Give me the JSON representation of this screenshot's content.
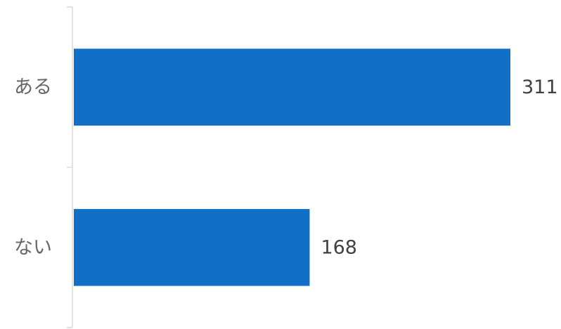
{
  "chart_data": {
    "type": "bar",
    "orientation": "horizontal",
    "categories": [
      "ある",
      "ない"
    ],
    "values": [
      311,
      168
    ],
    "title": "",
    "xlabel": "",
    "ylabel": "",
    "xlim": [
      0,
      311
    ],
    "grid": false,
    "legend": "none",
    "data_labels": true,
    "bar_color": "#1170c6"
  }
}
